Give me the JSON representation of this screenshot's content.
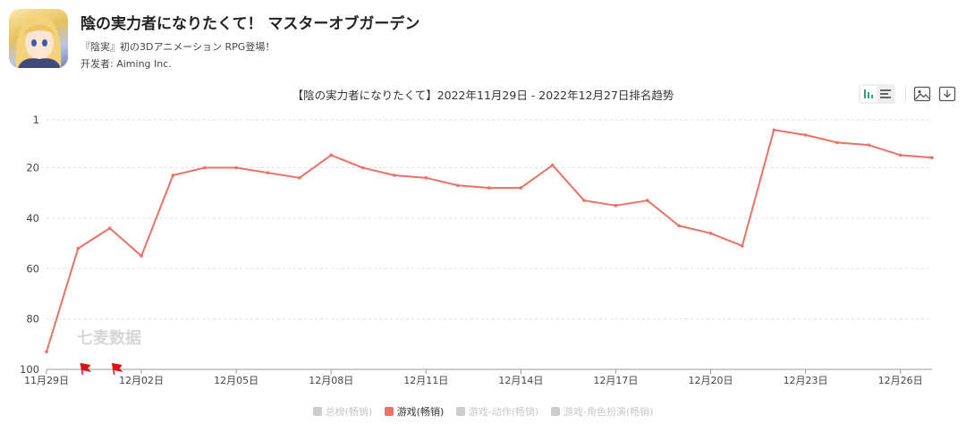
{
  "app": {
    "title": "陰の実力者になりたくて！ マスターオブガーデン",
    "subtitle": "『陰実』初の3Dアニメーション RPG登場！",
    "developer_label": "开发者:",
    "developer": "Aiming Inc."
  },
  "watermark": "七麦数据",
  "colors": {
    "line": "#ec7063",
    "grid": "#dddddd",
    "axis": "#999999",
    "flag": "#dd1111"
  },
  "legend": [
    {
      "label": "总榜(畅销)",
      "active": false
    },
    {
      "label": "游戏(畅销)",
      "active": true
    },
    {
      "label": "游戏-动作(畅销)",
      "active": false
    },
    {
      "label": "游戏-角色扮演(畅销)",
      "active": false
    }
  ],
  "chart_data": {
    "type": "line",
    "title": "【陰の実力者になりたくて】2022年11月29日 - 2022年12月27日排名趋势",
    "y_inverted": true,
    "ylim": [
      1,
      100
    ],
    "yticks": [
      1,
      20,
      40,
      60,
      80,
      100
    ],
    "x_tick_labels": [
      "11月29日",
      "12月02日",
      "12月05日",
      "12月08日",
      "12月11日",
      "12月14日",
      "12月17日",
      "12月20日",
      "12月23日",
      "12月26日"
    ],
    "x_tick_day_index": [
      0,
      3,
      6,
      9,
      12,
      15,
      18,
      21,
      24,
      27
    ],
    "flags_day_index": [
      1,
      2
    ],
    "series": [
      {
        "name": "游戏(畅销)",
        "day_index": [
          0,
          1,
          2,
          3,
          4,
          5,
          6,
          7,
          8,
          9,
          10,
          11,
          12,
          13,
          14,
          15,
          16,
          17,
          18,
          19,
          20,
          21,
          22,
          23,
          24,
          25,
          26,
          27,
          28
        ],
        "values": [
          93,
          52,
          44,
          55,
          23,
          20,
          20,
          22,
          24,
          15,
          20,
          23,
          24,
          27,
          28,
          28,
          19,
          33,
          35,
          33,
          43,
          46,
          51,
          5,
          7,
          10,
          11,
          15,
          16
        ]
      }
    ]
  }
}
